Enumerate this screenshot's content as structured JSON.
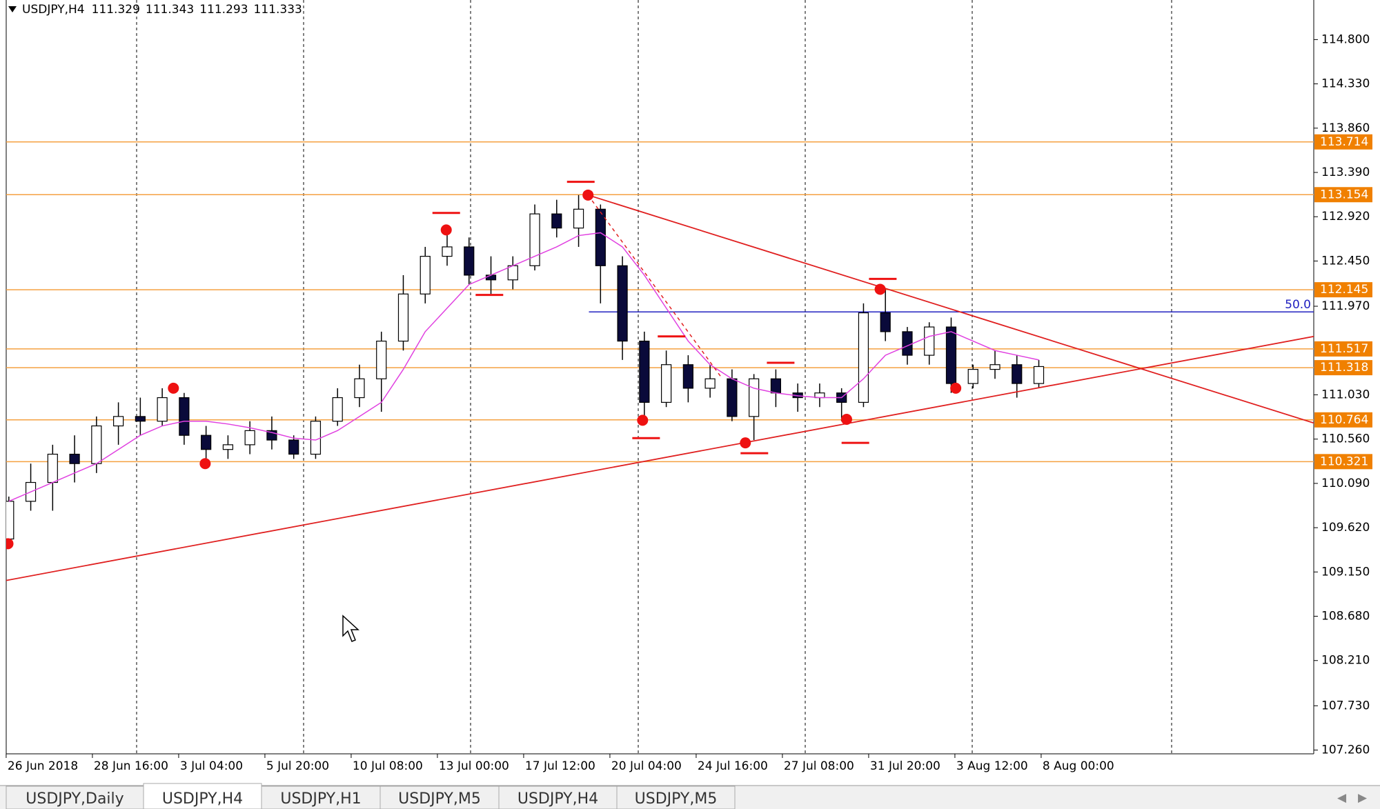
{
  "chart_data": {
    "type": "candlestick",
    "symbol": "USDJPY,H4",
    "header_ohlc": [
      111.329,
      111.343,
      111.293,
      111.333
    ],
    "ylim": [
      107.22,
      115.22
    ],
    "yticks": [
      {
        "value": 114.8,
        "label": "114.800"
      },
      {
        "value": 114.33,
        "label": "114.330"
      },
      {
        "value": 113.86,
        "label": "113.860"
      },
      {
        "value": 113.39,
        "label": "113.390"
      },
      {
        "value": 112.92,
        "label": "112.920"
      },
      {
        "value": 112.45,
        "label": "112.450"
      },
      {
        "value": 111.97,
        "label": "111.970"
      },
      {
        "value": 111.03,
        "label": "111.030"
      },
      {
        "value": 110.56,
        "label": "110.560"
      },
      {
        "value": 110.09,
        "label": "110.090"
      },
      {
        "value": 109.62,
        "label": "109.620"
      },
      {
        "value": 109.15,
        "label": "109.150"
      },
      {
        "value": 108.68,
        "label": "108.680"
      },
      {
        "value": 108.21,
        "label": "108.210"
      },
      {
        "value": 107.73,
        "label": "107.730"
      },
      {
        "value": 107.26,
        "label": "107.260"
      }
    ],
    "x_labels": [
      "26 Jun 2018",
      "28 Jun 16:00",
      "3 Jul 04:00",
      "5 Jul 20:00",
      "10 Jul 08:00",
      "13 Jul 00:00",
      "17 Jul 12:00",
      "20 Jul 04:00",
      "24 Jul 16:00",
      "27 Jul 08:00",
      "31 Jul 20:00",
      "3 Aug 12:00",
      "8 Aug 00:00"
    ],
    "bull_color": "#ffffff",
    "bear_color": "#0a0a3a",
    "open": [
      109.5,
      109.9,
      110.1,
      110.4,
      110.3,
      110.7,
      110.8,
      110.75,
      111.0,
      110.6,
      110.45,
      110.5,
      110.65,
      110.55,
      110.4,
      110.75,
      111.0,
      111.2,
      111.6,
      112.1,
      112.5,
      112.6,
      112.3,
      112.25,
      112.4,
      112.95,
      112.8,
      113.0,
      112.4,
      111.6,
      110.95,
      111.35,
      111.1,
      111.2,
      110.8,
      111.2,
      111.05,
      111.0,
      111.05,
      110.95,
      111.9,
      111.7,
      111.45,
      111.75,
      111.15,
      111.3,
      111.35,
      111.15
    ],
    "high": [
      109.95,
      110.3,
      110.5,
      110.6,
      110.8,
      110.95,
      111.0,
      111.1,
      111.05,
      110.7,
      110.6,
      110.75,
      110.8,
      110.6,
      110.8,
      111.1,
      111.35,
      111.7,
      112.3,
      112.6,
      112.8,
      112.7,
      112.5,
      112.5,
      113.05,
      113.1,
      113.15,
      113.05,
      112.5,
      111.7,
      111.5,
      111.45,
      111.35,
      111.3,
      111.25,
      111.3,
      111.15,
      111.15,
      111.1,
      112.0,
      112.15,
      111.75,
      111.8,
      111.85,
      111.35,
      111.5,
      111.45,
      111.4
    ],
    "low": [
      109.4,
      109.8,
      109.8,
      110.1,
      110.2,
      110.5,
      110.6,
      110.7,
      110.5,
      110.3,
      110.35,
      110.4,
      110.45,
      110.35,
      110.35,
      110.7,
      110.9,
      110.85,
      111.5,
      112.0,
      112.4,
      112.2,
      112.1,
      112.15,
      112.35,
      112.7,
      112.6,
      112.0,
      111.4,
      110.75,
      110.9,
      110.95,
      111.0,
      110.75,
      110.55,
      110.9,
      110.85,
      110.9,
      110.75,
      110.9,
      111.6,
      111.35,
      111.35,
      111.05,
      111.1,
      111.2,
      111.0,
      111.1
    ],
    "close": [
      109.9,
      110.1,
      110.4,
      110.3,
      110.7,
      110.8,
      110.75,
      111.0,
      110.6,
      110.45,
      110.5,
      110.65,
      110.55,
      110.4,
      110.75,
      111.0,
      111.2,
      111.6,
      112.1,
      112.5,
      112.6,
      112.3,
      112.25,
      112.4,
      112.95,
      112.8,
      113.0,
      112.4,
      111.6,
      110.95,
      111.35,
      111.1,
      111.2,
      110.8,
      111.2,
      111.05,
      111.0,
      111.05,
      110.95,
      111.9,
      111.7,
      111.45,
      111.75,
      111.15,
      111.3,
      111.35,
      111.15,
      111.33
    ],
    "ma": {
      "color": "#e040e0",
      "values": [
        109.9,
        110.0,
        110.1,
        110.2,
        110.3,
        110.45,
        110.6,
        110.7,
        110.75,
        110.75,
        110.72,
        110.68,
        110.63,
        110.57,
        110.55,
        110.65,
        110.8,
        110.95,
        111.3,
        111.7,
        111.95,
        112.2,
        112.3,
        112.4,
        112.5,
        112.6,
        112.72,
        112.75,
        112.6,
        112.3,
        111.95,
        111.6,
        111.35,
        111.2,
        111.1,
        111.05,
        111.02,
        111.0,
        111.0,
        111.2,
        111.45,
        111.55,
        111.65,
        111.7,
        111.6,
        111.5,
        111.45,
        111.4
      ]
    },
    "levels": {
      "color": "#f5a040",
      "label_color": "#f08000",
      "values": [
        113.714,
        113.154,
        112.145,
        111.517,
        111.318,
        110.764,
        110.321
      ]
    },
    "fib": {
      "label": "50.0",
      "price": 111.91,
      "x": 26.47,
      "color": "#2020c0"
    },
    "trendlines": {
      "color": "#e02020",
      "lines": [
        [
          {
            "x": 26.43,
            "price": 113.15
          },
          {
            "x": 59.56,
            "price": 110.73
          }
        ],
        [
          {
            "x": -0.12,
            "price": 109.06
          },
          {
            "x": 59.56,
            "price": 111.65
          }
        ]
      ],
      "dashed": [
        {
          "x": 26.43,
          "price": 113.15
        },
        {
          "x": 32.53,
          "price": 111.21
        }
      ]
    },
    "markers": {
      "color": "#ee1111",
      "dots": [
        {
          "x": -0.04,
          "price": 109.45
        },
        {
          "x": 7.51,
          "price": 111.1
        },
        {
          "x": 8.96,
          "price": 110.3
        },
        {
          "x": 19.96,
          "price": 112.78
        },
        {
          "x": 26.43,
          "price": 113.15
        },
        {
          "x": 28.92,
          "price": 110.76
        },
        {
          "x": 33.61,
          "price": 110.52
        },
        {
          "x": 38.23,
          "price": 110.77
        },
        {
          "x": 39.76,
          "price": 112.15
        },
        {
          "x": 43.21,
          "price": 111.1
        }
      ],
      "dashes": [
        {
          "x": 19.96,
          "price": 112.96
        },
        {
          "x": 21.93,
          "price": 112.09
        },
        {
          "x": 26.1,
          "price": 113.29
        },
        {
          "x": 30.24,
          "price": 111.65
        },
        {
          "x": 29.08,
          "price": 110.57
        },
        {
          "x": 35.22,
          "price": 111.37
        },
        {
          "x": 34.02,
          "price": 110.41
        },
        {
          "x": 39.88,
          "price": 112.26
        },
        {
          "x": 38.63,
          "price": 110.52
        }
      ]
    }
  },
  "tabs": [
    "USDJPY,Daily",
    "USDJPY,H4",
    "USDJPY,H1",
    "USDJPY,M5",
    "USDJPY,H4",
    "USDJPY,M5"
  ]
}
